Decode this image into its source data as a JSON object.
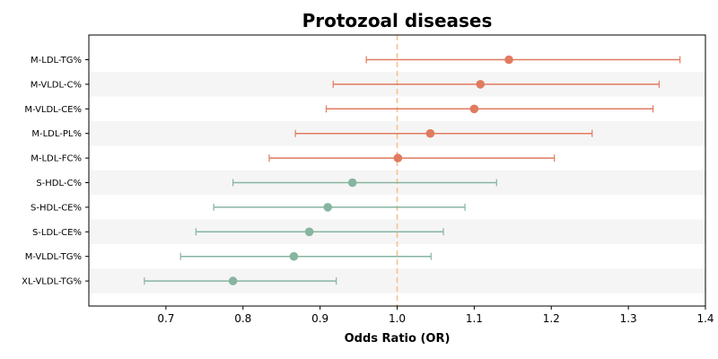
{
  "chart_data": {
    "type": "forest",
    "title": "Protozoal diseases",
    "xlabel": "Odds Ratio (OR)",
    "ylabel": "",
    "xlim": [
      0.6,
      1.4
    ],
    "xticks": [
      "0.7",
      "0.8",
      "0.9",
      "1.0",
      "1.1",
      "1.2",
      "1.3",
      "1.4"
    ],
    "reference_line": 1.0,
    "rows": [
      {
        "label": "M-LDL-TG%",
        "or": 1.145,
        "lower": 0.96,
        "upper": 1.367,
        "color": "#e07b5f"
      },
      {
        "label": "M-VLDL-C%",
        "or": 1.108,
        "lower": 0.917,
        "upper": 1.34,
        "color": "#e07b5f"
      },
      {
        "label": "M-VLDL-CE%",
        "or": 1.1,
        "lower": 0.908,
        "upper": 1.332,
        "color": "#e07b5f"
      },
      {
        "label": "M-LDL-PL%",
        "or": 1.043,
        "lower": 0.868,
        "upper": 1.253,
        "color": "#e07b5f"
      },
      {
        "label": "M-LDL-FC%",
        "or": 1.001,
        "lower": 0.834,
        "upper": 1.204,
        "color": "#e07b5f"
      },
      {
        "label": "S-HDL-C%",
        "or": 0.942,
        "lower": 0.787,
        "upper": 1.129,
        "color": "#86b5a0"
      },
      {
        "label": "S-HDL-CE%",
        "or": 0.91,
        "lower": 0.762,
        "upper": 1.088,
        "color": "#86b5a0"
      },
      {
        "label": "S-LDL-CE%",
        "or": 0.886,
        "lower": 0.739,
        "upper": 1.06,
        "color": "#86b5a0"
      },
      {
        "label": "M-VLDL-TG%",
        "or": 0.866,
        "lower": 0.719,
        "upper": 1.044,
        "color": "#86b5a0"
      },
      {
        "label": "XL-VLDL-TG%",
        "or": 0.787,
        "lower": 0.672,
        "upper": 0.921,
        "color": "#86b5a0"
      }
    ],
    "colors": {
      "reference": "#f5c28a",
      "band": "#f5f5f5"
    },
    "grid": false
  }
}
